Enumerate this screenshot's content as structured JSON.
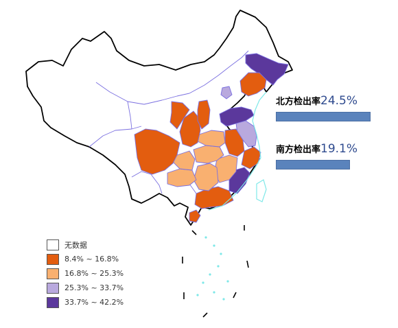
{
  "colors": {
    "no_data": "#ffffff",
    "range_1": "#e35d0f",
    "range_2": "#f9b070",
    "range_3": "#b9a9de",
    "range_4": "#5b389c"
  },
  "stats": [
    {
      "label": "北方检出率",
      "value": "24.5%",
      "rate": 24.5
    },
    {
      "label": "南方检出率",
      "value": "19.1%",
      "rate": 19.1
    }
  ],
  "legend": [
    {
      "label": "无数据",
      "color": "#ffffff"
    },
    {
      "label": "8.4% ~ 16.8%",
      "color": "#e35d0f"
    },
    {
      "label": "16.8% ~ 25.3%",
      "color": "#f9b070"
    },
    {
      "label": "25.3% ~ 33.7%",
      "color": "#b9a9de"
    },
    {
      "label": "33.7% ~ 42.2%",
      "color": "#5b389c"
    }
  ]
}
